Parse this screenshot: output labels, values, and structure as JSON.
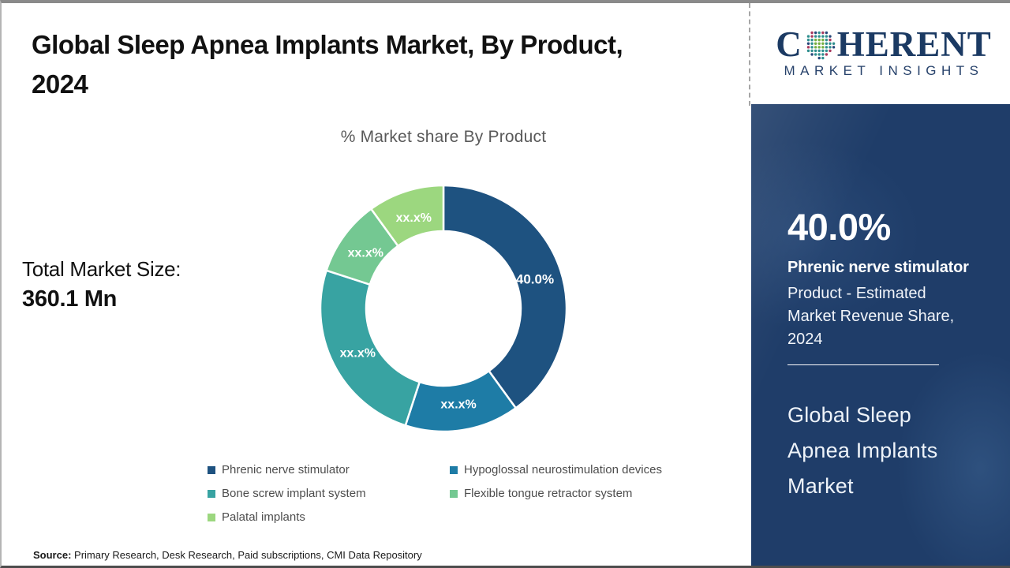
{
  "title_lines": [
    "Global Sleep Apnea Implants Market, By Product,",
    "2024"
  ],
  "subtitle": "% Market share By Product",
  "total_market": {
    "label": "Total Market Size:",
    "value": "360.1 Mn"
  },
  "source": {
    "label": "Source:",
    "text": " Primary Research, Desk Research, Paid subscriptions, CMI Data Repository"
  },
  "logo": {
    "first_letter": "C",
    "rest_letters": "HERENT",
    "subtext": "MARKET INSIGHTS",
    "text_color": "#1b3a63",
    "globe_colors": {
      "outer": [
        "#a93a5e",
        "#27487a",
        "#2f8f8f"
      ],
      "mid": "#2f8f8f",
      "inner": "#76b043"
    }
  },
  "sidebar": {
    "stat_value": "40.0%",
    "stat_title": "Phrenic nerve stimulator",
    "stat_desc_lines": [
      "Product - Estimated",
      "Market Revenue Share,",
      "2024"
    ],
    "market_name_lines": [
      "Global Sleep",
      "Apnea Implants",
      "Market"
    ]
  },
  "chart_data": {
    "type": "pie",
    "variant": "donut",
    "title": "% Market share By Product",
    "categories": [
      "Phrenic nerve stimulator",
      "Hypoglossal neurostimulation devices",
      "Bone screw implant system",
      "Flexible tongue retractor system",
      "Palatal implants"
    ],
    "values": [
      40.0,
      15.0,
      25.0,
      10.0,
      10.0
    ],
    "slice_labels": [
      "40.0%",
      "xx.x%",
      "xx.x%",
      "xx.x%",
      "xx.x%"
    ],
    "colors": [
      "#1e5280",
      "#1e7ca6",
      "#38a3a2",
      "#74c892",
      "#9cd77f"
    ],
    "start_angle_deg": 0,
    "direction": "clockwise",
    "legend_position": "bottom",
    "note": "Only the 40.0% share (Phrenic nerve stimulator) is disclosed; other slices are masked as xx.x%"
  }
}
